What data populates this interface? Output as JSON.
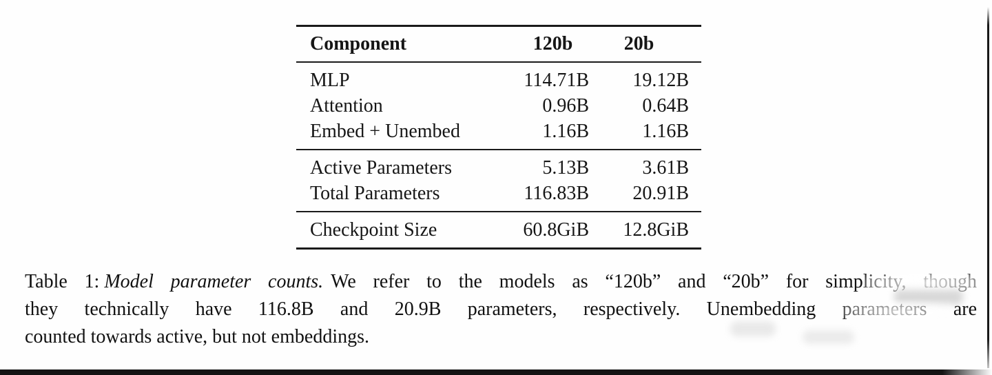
{
  "page": {
    "background_color": "#fefefe",
    "ink_color": "#161616"
  },
  "table": {
    "headers": {
      "component": "Component",
      "model_120b": "120b",
      "model_20b": "20b"
    },
    "sections": [
      {
        "rows": [
          {
            "label": "MLP",
            "v120b": "114.71B",
            "v20b": "19.12B"
          },
          {
            "label": "Attention",
            "v120b": "0.96B",
            "v20b": "0.64B"
          },
          {
            "label": "Embed + Unembed",
            "v120b": "1.16B",
            "v20b": "1.16B"
          }
        ]
      },
      {
        "rows": [
          {
            "label": "Active Parameters",
            "v120b": "5.13B",
            "v20b": "3.61B"
          },
          {
            "label": "Total Parameters",
            "v120b": "116.83B",
            "v20b": "20.91B"
          }
        ]
      },
      {
        "rows": [
          {
            "label": "Checkpoint Size",
            "v120b": "60.8GiB",
            "v20b": "12.8GiB"
          }
        ]
      }
    ]
  },
  "caption": {
    "label": "Table 1:",
    "title_italic": "Model parameter counts.",
    "line1_rest": "We refer to the models as “120b” and “20b” for simplicity, though",
    "line2": "they technically have 116.8B and 20.9B parameters, respectively. Unembedding parameters are",
    "line3": "counted towards active, but not embeddings."
  }
}
